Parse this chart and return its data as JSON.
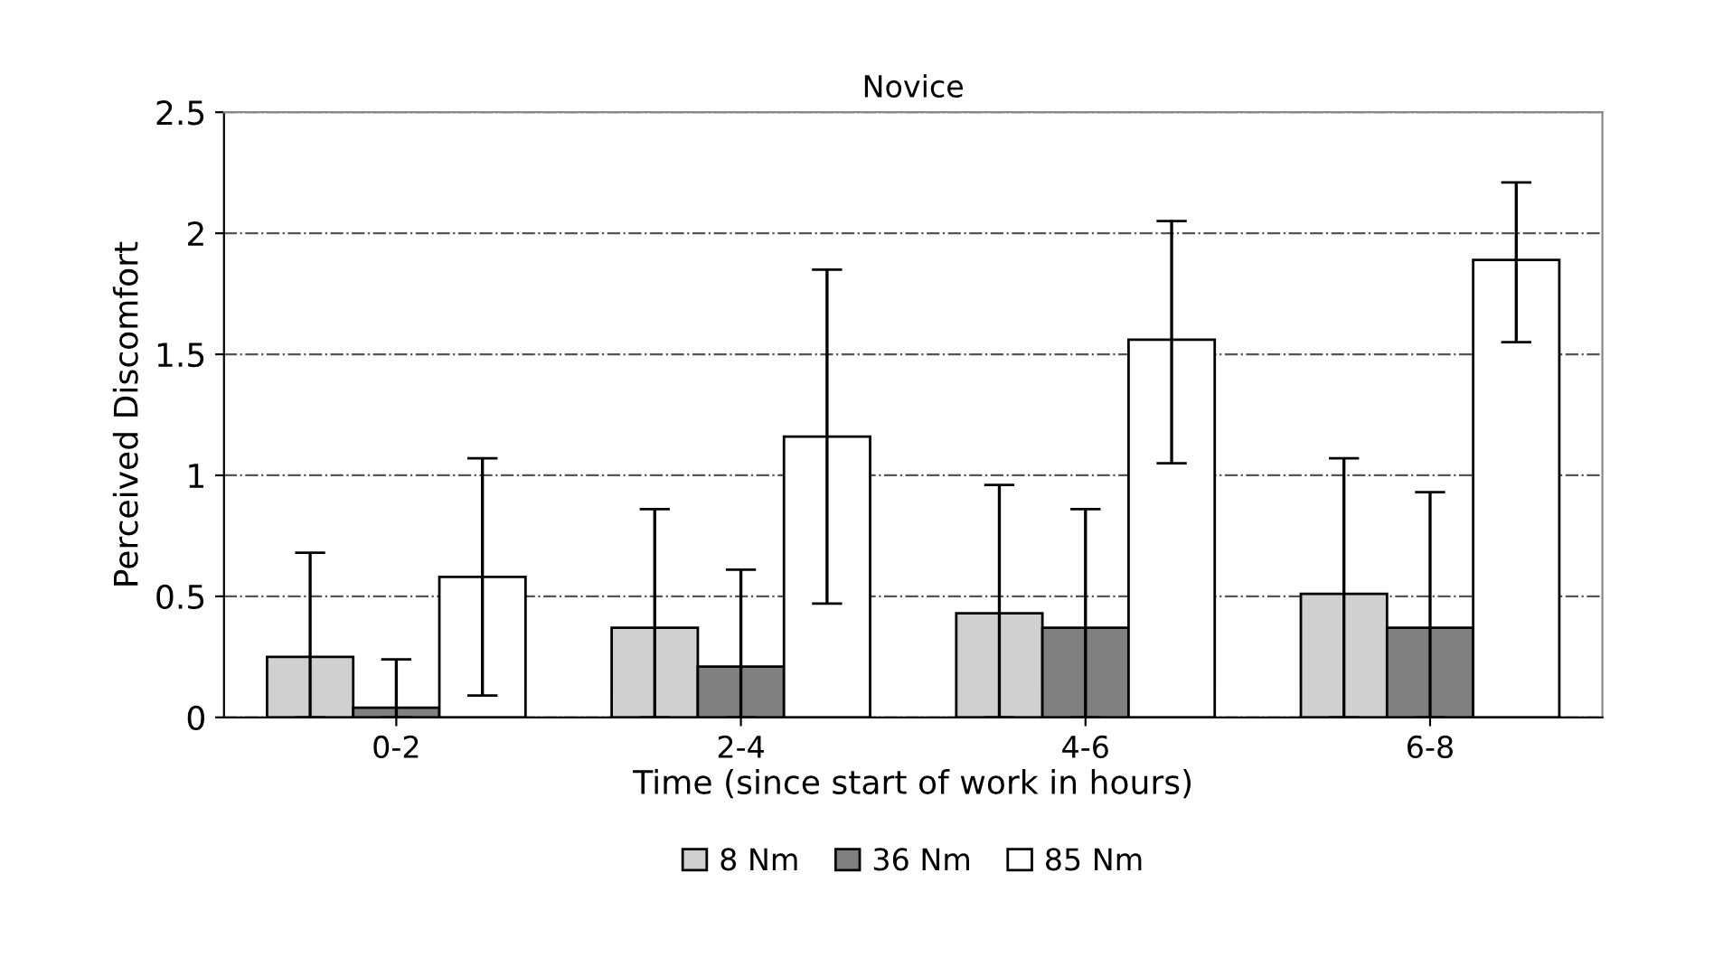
{
  "chart_data": {
    "type": "bar",
    "title": "Novice",
    "xlabel": "Time (since start of work in hours)",
    "ylabel": "Perceived Discomfort",
    "categories": [
      "0-2",
      "2-4",
      "4-6",
      "6-8"
    ],
    "series": [
      {
        "name": "8 Nm",
        "color": "#d0d0d0",
        "values": [
          0.25,
          0.37,
          0.43,
          0.51
        ],
        "errors": [
          [
            0,
            0.68
          ],
          [
            0,
            0.86
          ],
          [
            0,
            0.96
          ],
          [
            0,
            1.07
          ]
        ]
      },
      {
        "name": "36 Nm",
        "color": "#808080",
        "values": [
          0.04,
          0.21,
          0.37,
          0.37
        ],
        "errors": [
          [
            0,
            0.24
          ],
          [
            0,
            0.61
          ],
          [
            0,
            0.86
          ],
          [
            0,
            0.93
          ]
        ]
      },
      {
        "name": "85 Nm",
        "color": "#ffffff",
        "values": [
          0.58,
          1.16,
          1.56,
          1.89
        ],
        "errors": [
          [
            0.09,
            1.07
          ],
          [
            0.47,
            1.85
          ],
          [
            1.05,
            2.05
          ],
          [
            1.55,
            2.21
          ]
        ]
      }
    ],
    "ylim": [
      0,
      2.5
    ],
    "yticks": [
      0,
      0.5,
      1,
      1.5,
      2,
      2.5
    ],
    "grid": "y",
    "legend": "bottom"
  }
}
